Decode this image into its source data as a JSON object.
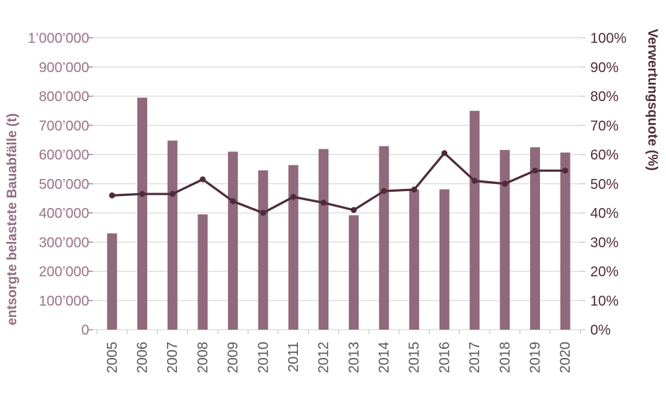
{
  "chart_data": {
    "type": "bar",
    "subtype": "bar+line combo, dual axis",
    "title": "",
    "categories": [
      "2005",
      "2006",
      "2007",
      "2008",
      "2009",
      "2010",
      "2011",
      "2012",
      "2013",
      "2014",
      "2015",
      "2016",
      "2017",
      "2018",
      "2019",
      "2020"
    ],
    "series": [
      {
        "name": "entsorgte belastete Bauabfälle (t)",
        "type": "bar",
        "axis": "left",
        "color": "#90697C",
        "values": [
          330000,
          795000,
          648000,
          395000,
          610000,
          546000,
          564000,
          619000,
          392000,
          629000,
          480000,
          481000,
          750000,
          616000,
          625000,
          607000
        ]
      },
      {
        "name": "Verwertungsquote (%)",
        "type": "line",
        "axis": "right",
        "color": "#4E2B3B",
        "marker": "circle",
        "values": [
          46,
          46.5,
          46.5,
          51.5,
          44,
          40,
          45.5,
          43.5,
          41,
          47.5,
          48,
          60.5,
          51,
          50,
          54.5,
          54.5
        ]
      }
    ],
    "left_axis": {
      "title": "entsorgte belastete Bauabfälle (t)",
      "min": 0,
      "max": 1000000,
      "step": 100000,
      "tick_labels": [
        "0",
        "100’000",
        "200’000",
        "300’000",
        "400’000",
        "500’000",
        "600’000",
        "700’000",
        "800’000",
        "900’000",
        "1’000’000"
      ],
      "color": "#9A7386"
    },
    "right_axis": {
      "title": "Verwertungsquote (%)",
      "min": 0,
      "max": 100,
      "step": 10,
      "tick_labels": [
        "0%",
        "10%",
        "20%",
        "30%",
        "40%",
        "50%",
        "60%",
        "70%",
        "80%",
        "90%",
        "100%"
      ],
      "color": "#4F2C3B"
    },
    "x_axis": {
      "label_color": "#595959",
      "label_rotation": -90
    },
    "legend": false,
    "grid": true,
    "gridline_color": "#D9D9D9",
    "tick_color": "#C9C9C9",
    "background": "#FFFFFF"
  }
}
